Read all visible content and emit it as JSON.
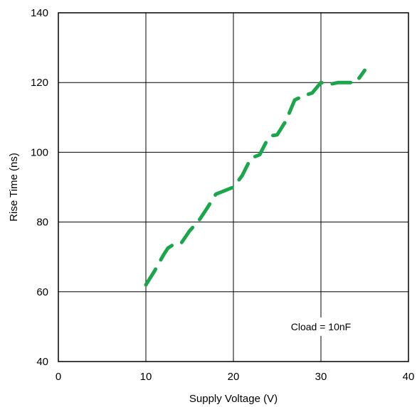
{
  "chart_data": {
    "type": "line",
    "title": "",
    "xlabel": "Supply Voltage (V)",
    "ylabel": "Rise Time (ns)",
    "xlim": [
      0,
      40
    ],
    "ylim": [
      40,
      140
    ],
    "x_ticks": [
      0,
      10,
      20,
      30,
      40
    ],
    "y_ticks": [
      40,
      60,
      80,
      100,
      120,
      140
    ],
    "x_tick_labels": [
      "0",
      "10",
      "20",
      "30",
      "40"
    ],
    "y_tick_labels": [
      "40",
      "60",
      "80",
      "100",
      "120",
      "140"
    ],
    "grid": true,
    "annotation": "Cload = 10nF",
    "series": [
      {
        "color": "#1aa64a",
        "line_style": "dashed",
        "x": [
          10,
          11,
          12,
          12.5,
          13,
          14,
          15,
          16,
          17,
          18,
          19,
          20,
          21,
          22,
          23,
          24,
          24.5,
          25,
          26,
          27,
          28,
          29,
          30,
          31,
          32,
          33,
          34,
          35
        ],
        "y": [
          62,
          66,
          70.5,
          72.5,
          73.3,
          73.8,
          77.5,
          80.2,
          84,
          88,
          89,
          90,
          93.3,
          98.3,
          99.3,
          104.2,
          104.8,
          105,
          109,
          115,
          116.2,
          117,
          120,
          119.5,
          120,
          120,
          120,
          123.5
        ]
      }
    ]
  }
}
